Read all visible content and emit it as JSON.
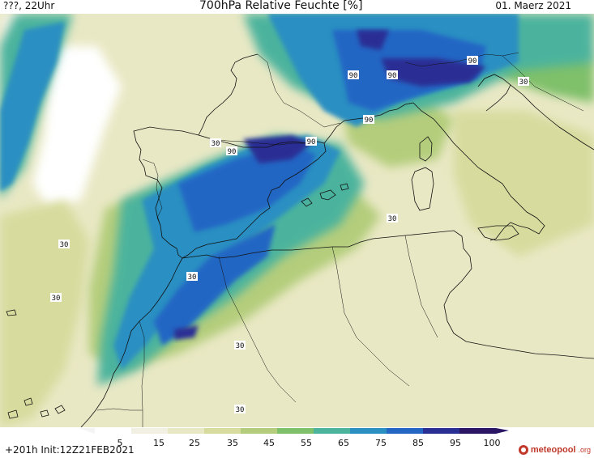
{
  "header": {
    "left": "???, 22Uhr",
    "title": "700hPa Relative Feuchte [%]",
    "date": "01. Maerz 2021"
  },
  "map": {
    "contour_labels": [
      "30",
      "90",
      "90",
      "90",
      "90",
      "90",
      "90",
      "30",
      "30",
      "30",
      "30",
      "30",
      "30",
      "30"
    ]
  },
  "legend": {
    "ticks": [
      "5",
      "15",
      "25",
      "35",
      "45",
      "55",
      "65",
      "75",
      "85",
      "95",
      "100"
    ],
    "colors": [
      "#ffffff",
      "#f2f0e2",
      "#e9e8c4",
      "#d7dc9e",
      "#b4cd7c",
      "#7fc06b",
      "#4cb39d",
      "#2b8fc2",
      "#2466c4",
      "#2a2f94",
      "#2b1666"
    ]
  },
  "footer": {
    "run": "+201h  Init:12Z21FEB2021",
    "logo_main": "meteopool",
    "logo_suffix": ".org"
  }
}
